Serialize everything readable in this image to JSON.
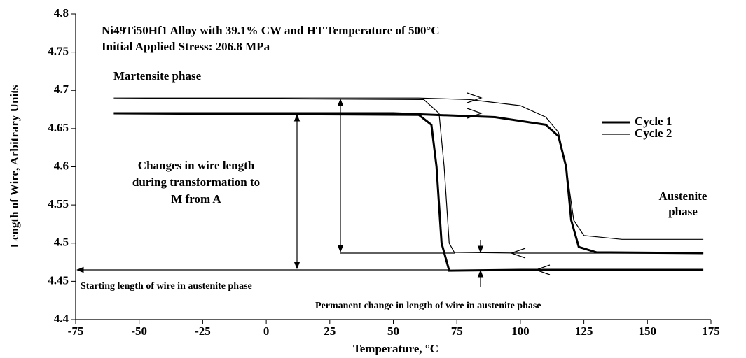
{
  "chart_data": {
    "type": "line",
    "title": "Ni49Ti50Hf1 Alloy with 39.1% CW and HT Temperature of 500°C",
    "subtitle": "Initial Applied Stress: 206.8 MPa",
    "x_label": "Temperature, °C",
    "y_label": "Length of Wire, Arbitrary Units",
    "xlim": [
      -75,
      175
    ],
    "xticks": [
      -75,
      -50,
      -25,
      0,
      25,
      50,
      75,
      100,
      125,
      150,
      175
    ],
    "ylim": [
      4.4,
      4.8
    ],
    "yticks": [
      4.4,
      4.45,
      4.5,
      4.55,
      4.6,
      4.65,
      4.7,
      4.75,
      4.8
    ],
    "legend": "right",
    "series": [
      {
        "name": "Cycle 1",
        "color": "#000000",
        "width": 3,
        "x": [
          -60,
          50,
          90,
          110,
          115,
          118,
          120,
          123,
          130,
          172,
          null,
          172,
          100,
          72,
          69,
          67,
          65,
          60,
          -60
        ],
        "values": [
          4.67,
          4.67,
          4.665,
          4.655,
          4.64,
          4.6,
          4.53,
          4.495,
          4.488,
          4.487,
          null,
          4.465,
          4.465,
          4.464,
          4.5,
          4.6,
          4.655,
          4.668,
          4.67
        ]
      },
      {
        "name": "Cycle 2",
        "color": "#000000",
        "width": 1.2,
        "x": [
          -60,
          60,
          80,
          100,
          110,
          115,
          118,
          121,
          125,
          140,
          172,
          null,
          172,
          100,
          74,
          72,
          70,
          68,
          62,
          -60
        ],
        "values": [
          4.69,
          4.69,
          4.688,
          4.68,
          4.665,
          4.645,
          4.6,
          4.53,
          4.51,
          4.505,
          4.505,
          null,
          4.487,
          4.487,
          4.488,
          4.5,
          4.6,
          4.67,
          4.688,
          4.69
        ]
      }
    ],
    "annotations": [
      "Martensite phase",
      "Changes in wire length",
      "during transformation to",
      "M from A",
      "Austenite",
      "phase",
      "Starting length of wire in austenite phase",
      "Permanent change in length of wire in austenite phase"
    ]
  }
}
